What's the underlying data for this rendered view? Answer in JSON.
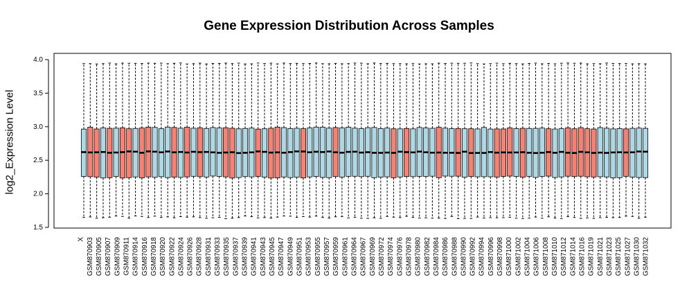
{
  "chart_data": {
    "type": "boxplot",
    "title": "Gene Expression Distribution Across Samples",
    "xlabel": "",
    "ylabel": "log2_Expression Level",
    "ylim": [
      1.5,
      4.0
    ],
    "yticks": [
      "1.5",
      "2.0",
      "2.5",
      "3.0",
      "3.5",
      "4.0"
    ],
    "colors": {
      "a": "#fa8072",
      "b": "#add8e6"
    },
    "categories": [
      "X",
      "GSM870903",
      "GSM870905",
      "GSM870907",
      "GSM870909",
      "GSM870911",
      "GSM870914",
      "GSM870916",
      "GSM870918",
      "GSM870920",
      "GSM870922",
      "GSM870924",
      "GSM870926",
      "GSM870928",
      "GSM870931",
      "GSM870933",
      "GSM870935",
      "GSM870937",
      "GSM870939",
      "GSM870941",
      "GSM870943",
      "GSM870945",
      "GSM870947",
      "GSM870949",
      "GSM870951",
      "GSM870953",
      "GSM870955",
      "GSM870957",
      "GSM870959",
      "GSM870961",
      "GSM870964",
      "GSM870967",
      "GSM870969",
      "GSM870972",
      "GSM870974",
      "GSM870976",
      "GSM870978",
      "GSM870980",
      "GSM870982",
      "GSM870984",
      "GSM870986",
      "GSM870988",
      "GSM870990",
      "GSM870992",
      "GSM870994",
      "GSM870996",
      "GSM870998",
      "GSM871000",
      "GSM871002",
      "GSM871004",
      "GSM871006",
      "GSM871008",
      "GSM871010",
      "GSM871012",
      "GSM871014",
      "GSM871016",
      "GSM871019",
      "GSM871021",
      "GSM871023",
      "GSM871025",
      "GSM871027",
      "GSM871030",
      "GSM871032"
    ],
    "box_count": 88,
    "groups": [
      "b",
      "a",
      "a",
      "b",
      "a",
      "b",
      "a",
      "a",
      "b",
      "a",
      "a",
      "b",
      "b",
      "b",
      "a",
      "b",
      "a",
      "b",
      "a",
      "b",
      "b",
      "b",
      "a",
      "a",
      "b",
      "b",
      "b",
      "a",
      "b",
      "a",
      "a",
      "b",
      "b",
      "b",
      "a",
      "b",
      "b",
      "b",
      "b",
      "a",
      "b",
      "b",
      "b",
      "b",
      "b",
      "b",
      "b",
      "b",
      "a",
      "b",
      "a",
      "b",
      "b",
      "b",
      "b",
      "a",
      "b",
      "b",
      "a",
      "b",
      "a",
      "b",
      "b",
      "b",
      "a",
      "a",
      "a",
      "b",
      "a",
      "b",
      "b",
      "b",
      "a",
      "b",
      "b",
      "a",
      "a",
      "a",
      "a",
      "a",
      "b",
      "b",
      "b",
      "b",
      "a",
      "b",
      "b",
      "b"
    ],
    "stats": {
      "whisker_low": 1.65,
      "q1": 2.25,
      "median": 2.62,
      "q3": 2.98,
      "whisker_high": 3.95
    }
  }
}
